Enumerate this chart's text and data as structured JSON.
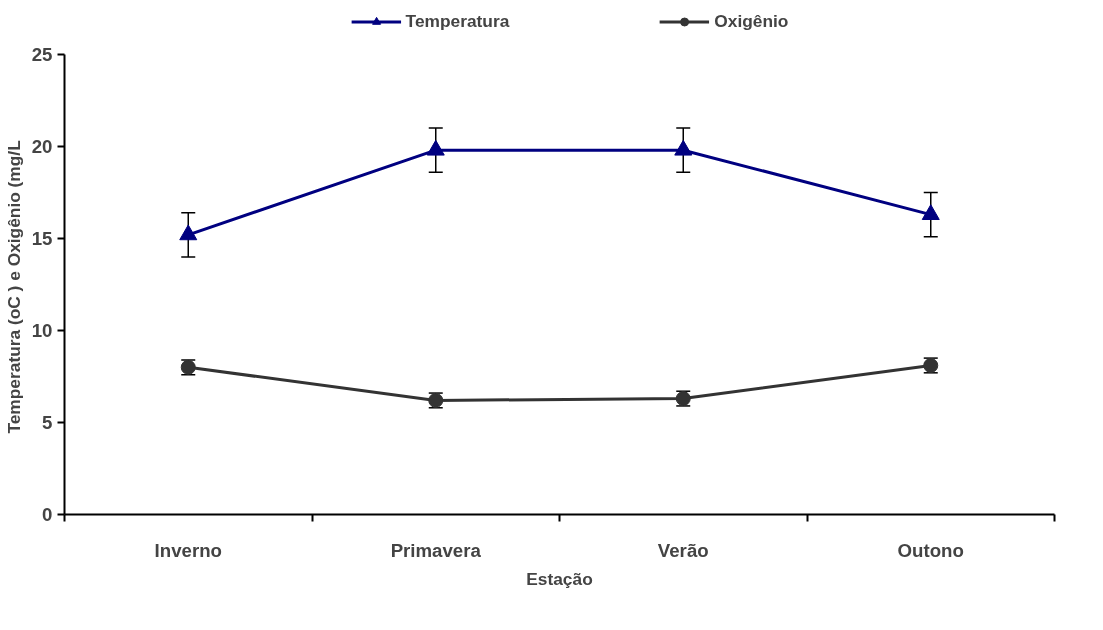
{
  "chart_data": {
    "type": "line",
    "xlabel": "Estação",
    "ylabel": "Temperatura  (oC ) e Oxigênio (mg/L",
    "categories": [
      "Inverno",
      "Primavera",
      "Verão",
      "Outono"
    ],
    "series": [
      {
        "name": "Temperatura",
        "color": "#000080",
        "marker": "triangle",
        "values": [
          15.2,
          19.8,
          19.8,
          16.3
        ],
        "errors": [
          1.2,
          1.2,
          1.2,
          1.2
        ]
      },
      {
        "name": "Oxigênio",
        "color": "#333333",
        "marker": "circle",
        "values": [
          8.0,
          6.2,
          6.3,
          8.1
        ],
        "errors": [
          0.4,
          0.4,
          0.4,
          0.4
        ]
      }
    ],
    "ylim": [
      0,
      25
    ],
    "yticks": [
      0,
      5,
      10,
      15,
      20,
      25
    ],
    "grid": false,
    "legend": "top"
  }
}
